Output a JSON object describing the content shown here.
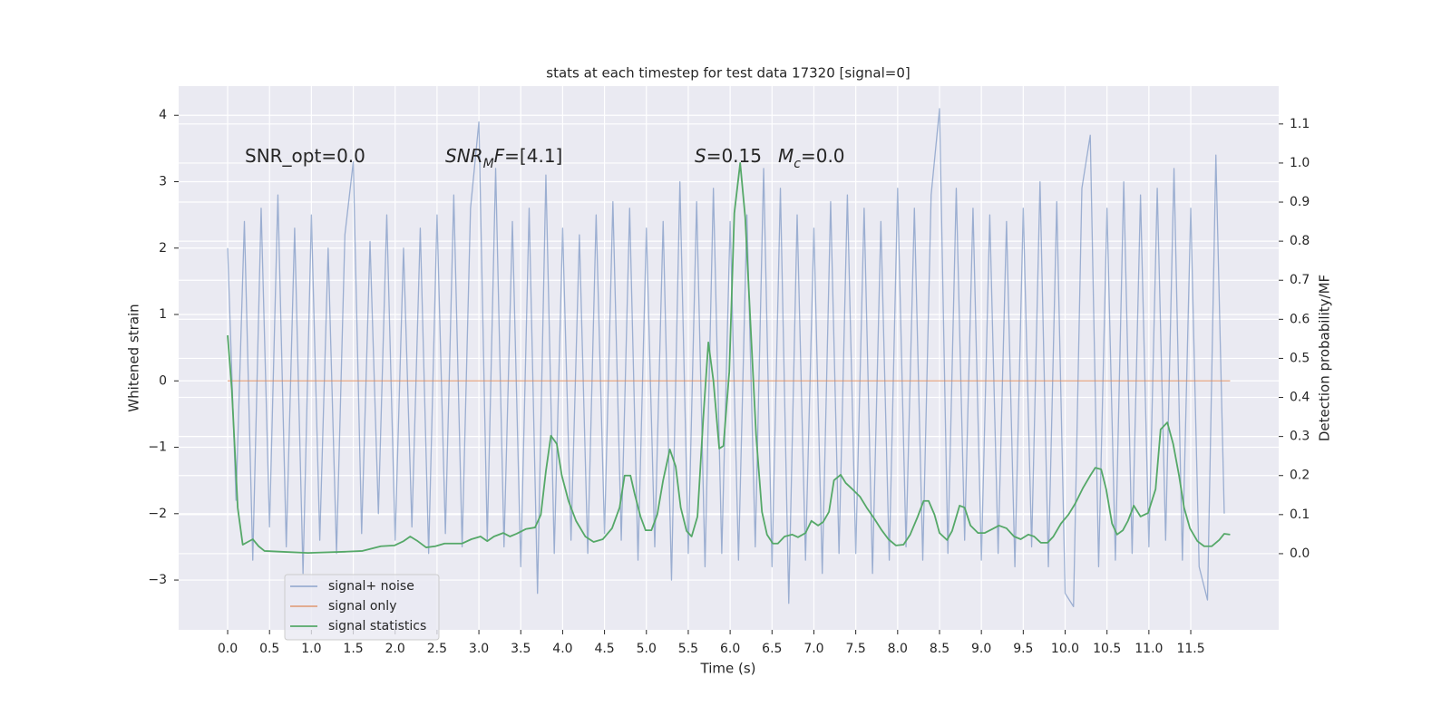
{
  "chart_data": {
    "type": "line",
    "title": "stats at each timestep for test data 17320 [signal=0]",
    "xlabel": "Time (s)",
    "ylabel": "Whitened strain",
    "y2label": "Detection probability/MF",
    "grid": true,
    "legend": "lower left",
    "xlim": [
      -0.585,
      12.55
    ],
    "ylim": [
      -3.75,
      4.44
    ],
    "y2lim": [
      -0.195,
      1.197
    ],
    "xticks": [
      {
        "value": 0,
        "label": "0.0"
      },
      {
        "value": 0.5,
        "label": "0.5"
      },
      {
        "value": 1,
        "label": "1.0"
      },
      {
        "value": 1.5,
        "label": "1.5"
      },
      {
        "value": 2,
        "label": "2.0"
      },
      {
        "value": 2.5,
        "label": "2.5"
      },
      {
        "value": 3,
        "label": "3.0"
      },
      {
        "value": 3.5,
        "label": "3.5"
      },
      {
        "value": 4,
        "label": "4.0"
      },
      {
        "value": 4.5,
        "label": "4.5"
      },
      {
        "value": 5,
        "label": "5.0"
      },
      {
        "value": 5.5,
        "label": "5.5"
      },
      {
        "value": 6,
        "label": "6.0"
      },
      {
        "value": 6.5,
        "label": "6.5"
      },
      {
        "value": 7,
        "label": "7.0"
      },
      {
        "value": 7.5,
        "label": "7.5"
      },
      {
        "value": 8,
        "label": "8.0"
      },
      {
        "value": 8.5,
        "label": "8.5"
      },
      {
        "value": 9,
        "label": "9.0"
      },
      {
        "value": 9.5,
        "label": "9.5"
      },
      {
        "value": 10,
        "label": "10.0"
      },
      {
        "value": 10.5,
        "label": "10.5"
      },
      {
        "value": 11,
        "label": "11.0"
      },
      {
        "value": 11.5,
        "label": "11.5"
      }
    ],
    "yticks": [
      {
        "value": -3,
        "label": "−3"
      },
      {
        "value": -2,
        "label": "−2"
      },
      {
        "value": -1,
        "label": "−1"
      },
      0,
      1,
      2,
      3,
      4
    ],
    "y2ticks": [
      {
        "value": 0,
        "label": "0.0"
      },
      {
        "value": 0.1,
        "label": "0.1"
      },
      {
        "value": 0.2,
        "label": "0.2"
      },
      {
        "value": 0.3,
        "label": "0.3"
      },
      {
        "value": 0.4,
        "label": "0.4"
      },
      {
        "value": 0.5,
        "label": "0.5"
      },
      {
        "value": 0.6,
        "label": "0.6"
      },
      {
        "value": 0.7,
        "label": "0.7"
      },
      {
        "value": 0.8,
        "label": "0.8"
      },
      {
        "value": 0.9,
        "label": "0.9"
      },
      {
        "value": 1.0,
        "label": "1.0"
      },
      {
        "value": 1.1,
        "label": "1.1"
      }
    ],
    "annotations": [
      [
        {
          "text": "SNR_opt=0.0"
        }
      ],
      [
        {
          "text": "SNR",
          "style": "italic"
        },
        {
          "text": "M",
          "style": "italic",
          "sub": true
        },
        {
          "text": "F",
          "style": "italic"
        },
        {
          "text": "=[4.1]"
        }
      ],
      [
        {
          "text": "S",
          "style": "italic"
        },
        {
          "text": "=0.15"
        }
      ],
      [
        {
          "text": "M",
          "style": "italic"
        },
        {
          "text": "c",
          "style": "italic",
          "sub": true
        },
        {
          "text": "=0.0"
        }
      ]
    ],
    "series": [
      {
        "name": "signal+ noise",
        "color": "#4c72b0",
        "opacity": 0.5,
        "x": [
          0,
          0.1,
          0.2,
          0.3,
          0.4,
          0.5,
          0.6,
          0.7,
          0.8,
          0.9,
          1,
          1.1,
          1.2,
          1.3,
          1.4,
          1.5,
          1.6,
          1.7,
          1.8,
          1.9,
          2,
          2.1,
          2.2,
          2.3,
          2.4,
          2.5,
          2.6,
          2.7,
          2.8,
          2.9,
          3,
          3.1,
          3.2,
          3.3,
          3.4,
          3.5,
          3.6,
          3.7,
          3.8,
          3.9,
          4,
          4.1,
          4.2,
          4.3,
          4.4,
          4.5,
          4.6,
          4.7,
          4.8,
          4.9,
          5,
          5.1,
          5.2,
          5.3,
          5.4,
          5.5,
          5.6,
          5.7,
          5.8,
          5.9,
          6,
          6.1,
          6.2,
          6.3,
          6.4,
          6.5,
          6.6,
          6.7,
          6.8,
          6.9,
          7,
          7.1,
          7.2,
          7.3,
          7.4,
          7.5,
          7.6,
          7.7,
          7.8,
          7.9,
          8,
          8.1,
          8.2,
          8.3,
          8.4,
          8.5,
          8.6,
          8.7,
          8.8,
          8.9,
          9,
          9.1,
          9.2,
          9.3,
          9.4,
          9.5,
          9.6,
          9.7,
          9.8,
          9.9,
          10,
          10.1,
          10.2,
          10.3,
          10.4,
          10.5,
          10.6,
          10.7,
          10.8,
          10.9,
          11,
          11.1,
          11.2,
          11.3,
          11.4,
          11.5,
          11.6,
          11.7,
          11.8,
          11.9
        ],
        "values": [
          2.0,
          -1.8,
          2.4,
          -2.7,
          2.6,
          -2.2,
          2.8,
          -2.5,
          2.3,
          -2.9,
          2.5,
          -2.4,
          2.0,
          -2.6,
          2.2,
          3.3,
          -2.3,
          2.1,
          -2.0,
          2.5,
          -2.4,
          2.0,
          -2.2,
          2.3,
          -2.6,
          2.5,
          -2.3,
          2.8,
          -2.5,
          2.6,
          3.9,
          -2.4,
          3.2,
          -2.5,
          2.4,
          -2.8,
          2.6,
          -3.2,
          3.1,
          -2.6,
          2.3,
          -2.4,
          2.2,
          -2.6,
          2.5,
          -2.3,
          2.7,
          -2.4,
          2.6,
          -2.7,
          2.3,
          -2.5,
          2.4,
          -3.0,
          3.0,
          -2.6,
          2.7,
          -2.8,
          2.9,
          -2.6,
          2.4,
          -2.7,
          2.5,
          -2.5,
          3.2,
          -2.8,
          2.9,
          -3.35,
          2.5,
          -2.7,
          2.3,
          -2.9,
          2.7,
          -2.6,
          2.8,
          -2.6,
          2.6,
          -2.9,
          2.4,
          -2.7,
          2.9,
          -2.5,
          2.6,
          -2.7,
          2.8,
          4.1,
          -2.6,
          2.9,
          -2.4,
          2.6,
          -2.7,
          2.5,
          -2.6,
          2.4,
          -2.8,
          2.6,
          -2.5,
          3.0,
          -2.8,
          2.7,
          -3.2,
          -3.4,
          2.9,
          3.7,
          -2.8,
          2.6,
          -2.7,
          3.0,
          -2.6,
          2.8,
          -2.5,
          2.9,
          -2.4,
          3.2,
          -2.7,
          2.6,
          -2.8,
          -3.3,
          3.4,
          -2.0
        ]
      },
      {
        "name": "signal only",
        "color": "#dd8452",
        "opacity": 0.7,
        "x": [
          0,
          11.97
        ],
        "values": [
          0,
          0
        ]
      },
      {
        "name": "signal statistics",
        "color": "#55a868",
        "opacity": 1,
        "axis": "y2",
        "x": [
          0.0,
          0.05,
          0.12,
          0.18,
          0.24,
          0.3,
          0.37,
          0.44,
          0.64,
          0.96,
          1.4,
          1.61,
          1.83,
          1.99,
          2.1,
          2.18,
          2.27,
          2.37,
          2.48,
          2.59,
          2.7,
          2.8,
          2.91,
          3.02,
          3.1,
          3.18,
          3.29,
          3.37,
          3.45,
          3.56,
          3.67,
          3.74,
          3.8,
          3.86,
          3.93,
          3.99,
          4.07,
          4.16,
          4.27,
          4.37,
          4.48,
          4.59,
          4.68,
          4.74,
          4.81,
          4.86,
          4.93,
          4.99,
          5.06,
          5.13,
          5.2,
          5.28,
          5.35,
          5.41,
          5.48,
          5.54,
          5.61,
          5.68,
          5.74,
          5.8,
          5.87,
          5.92,
          5.99,
          6.05,
          6.12,
          6.18,
          6.25,
          6.31,
          6.38,
          6.44,
          6.51,
          6.57,
          6.65,
          6.74,
          6.81,
          6.9,
          6.97,
          7.05,
          7.11,
          7.18,
          7.24,
          7.32,
          7.38,
          7.46,
          7.55,
          7.63,
          7.72,
          7.81,
          7.89,
          7.98,
          8.07,
          8.15,
          8.24,
          8.31,
          8.37,
          8.44,
          8.5,
          8.59,
          8.65,
          8.74,
          8.8,
          8.87,
          8.96,
          9.04,
          9.13,
          9.21,
          9.3,
          9.39,
          9.47,
          9.56,
          9.63,
          9.71,
          9.79,
          9.86,
          9.95,
          10.04,
          10.12,
          10.21,
          10.3,
          10.36,
          10.43,
          10.49,
          10.56,
          10.62,
          10.69,
          10.75,
          10.82,
          10.9,
          10.99,
          11.08,
          11.14,
          11.22,
          11.29,
          11.36,
          11.42,
          11.49,
          11.58,
          11.66,
          11.75,
          11.84,
          11.9,
          11.97
        ],
        "values": [
          0.559,
          0.42,
          0.118,
          0.023,
          0.03,
          0.037,
          0.019,
          0.007,
          0.005,
          0.002,
          0.005,
          0.007,
          0.019,
          0.021,
          0.032,
          0.044,
          0.032,
          0.016,
          0.019,
          0.026,
          0.026,
          0.026,
          0.037,
          0.044,
          0.032,
          0.044,
          0.053,
          0.044,
          0.051,
          0.063,
          0.067,
          0.1,
          0.211,
          0.302,
          0.281,
          0.2,
          0.135,
          0.084,
          0.044,
          0.03,
          0.037,
          0.065,
          0.118,
          0.2,
          0.2,
          0.153,
          0.095,
          0.06,
          0.06,
          0.1,
          0.188,
          0.267,
          0.223,
          0.118,
          0.058,
          0.044,
          0.095,
          0.35,
          0.541,
          0.443,
          0.269,
          0.276,
          0.466,
          0.872,
          1.0,
          0.861,
          0.559,
          0.304,
          0.107,
          0.049,
          0.026,
          0.026,
          0.044,
          0.049,
          0.042,
          0.053,
          0.084,
          0.072,
          0.081,
          0.107,
          0.188,
          0.202,
          0.181,
          0.165,
          0.146,
          0.118,
          0.09,
          0.06,
          0.037,
          0.021,
          0.023,
          0.049,
          0.095,
          0.135,
          0.135,
          0.1,
          0.053,
          0.035,
          0.058,
          0.123,
          0.118,
          0.072,
          0.053,
          0.053,
          0.063,
          0.072,
          0.065,
          0.044,
          0.037,
          0.049,
          0.044,
          0.028,
          0.028,
          0.044,
          0.077,
          0.1,
          0.128,
          0.167,
          0.2,
          0.22,
          0.216,
          0.165,
          0.077,
          0.049,
          0.06,
          0.084,
          0.123,
          0.095,
          0.104,
          0.165,
          0.318,
          0.336,
          0.281,
          0.2,
          0.118,
          0.065,
          0.032,
          0.019,
          0.019,
          0.035,
          0.051,
          0.049
        ]
      }
    ]
  }
}
